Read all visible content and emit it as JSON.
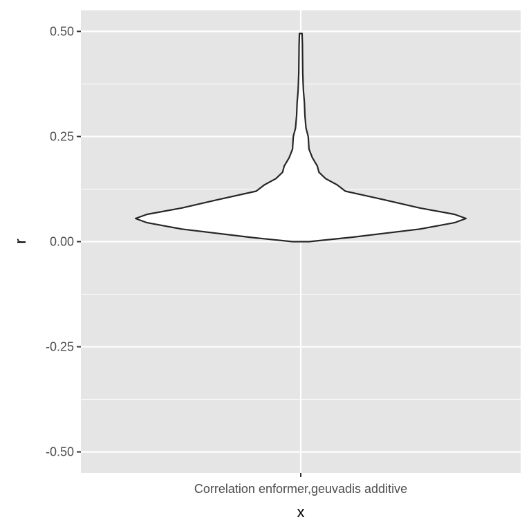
{
  "chart_data": {
    "type": "violin",
    "title": "",
    "xlabel": "x",
    "ylabel": "r",
    "categories": [
      "Correlation enformer,geuvadis additive"
    ],
    "ylim": [
      -0.55,
      0.55
    ],
    "y_ticks": [
      {
        "value": -0.5,
        "label": "-0.50"
      },
      {
        "value": -0.25,
        "label": "-0.25"
      },
      {
        "value": 0.0,
        "label": "0.00"
      },
      {
        "value": 0.25,
        "label": "0.25"
      },
      {
        "value": 0.5,
        "label": "0.50"
      }
    ],
    "y_minor_ticks": [
      -0.375,
      -0.125,
      0.125,
      0.375
    ],
    "grid": true,
    "background_color": "#e5e5e5",
    "grid_color": "#ffffff",
    "violin_fill": "#ffffff",
    "violin_stroke": "#262626",
    "density_profile": [
      {
        "r": 0.0,
        "width": 0.05
      },
      {
        "r": 0.01,
        "width": 0.3
      },
      {
        "r": 0.03,
        "width": 0.72
      },
      {
        "r": 0.045,
        "width": 0.93
      },
      {
        "r": 0.055,
        "width": 1.0
      },
      {
        "r": 0.065,
        "width": 0.93
      },
      {
        "r": 0.08,
        "width": 0.72
      },
      {
        "r": 0.1,
        "width": 0.5
      },
      {
        "r": 0.12,
        "width": 0.27
      },
      {
        "r": 0.135,
        "width": 0.22
      },
      {
        "r": 0.15,
        "width": 0.15
      },
      {
        "r": 0.165,
        "width": 0.11
      },
      {
        "r": 0.18,
        "width": 0.1
      },
      {
        "r": 0.2,
        "width": 0.07
      },
      {
        "r": 0.22,
        "width": 0.05
      },
      {
        "r": 0.25,
        "width": 0.045
      },
      {
        "r": 0.27,
        "width": 0.032
      },
      {
        "r": 0.3,
        "width": 0.025
      },
      {
        "r": 0.33,
        "width": 0.022
      },
      {
        "r": 0.36,
        "width": 0.016
      },
      {
        "r": 0.4,
        "width": 0.012
      },
      {
        "r": 0.44,
        "width": 0.011
      },
      {
        "r": 0.47,
        "width": 0.01
      },
      {
        "r": 0.495,
        "width": 0.008
      }
    ]
  }
}
